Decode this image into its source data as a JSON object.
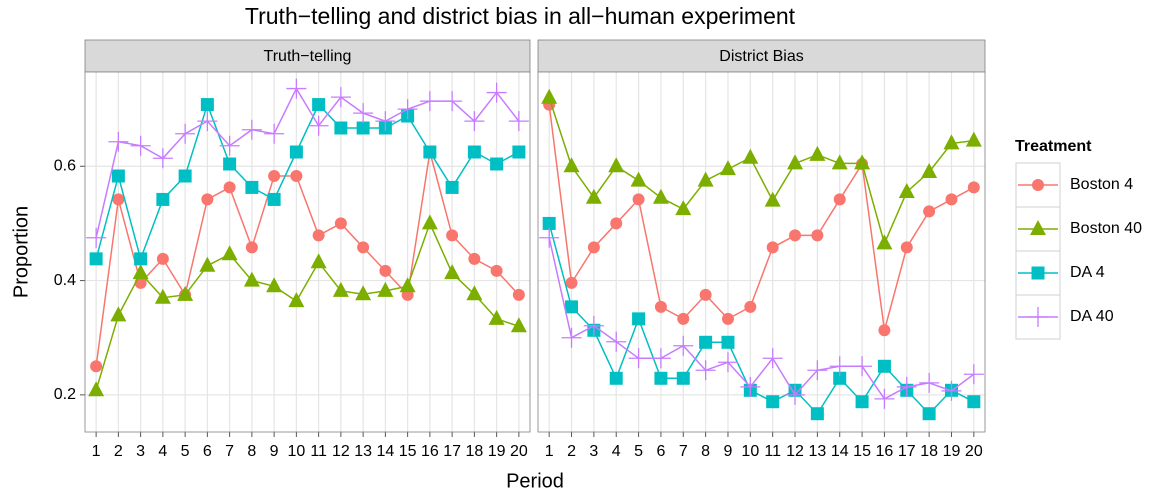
{
  "chart_data": {
    "type": "line",
    "title": "Truth−telling and district bias in all−human experiment",
    "xlabel": "Period",
    "ylabel": "Proportion",
    "legend_title": "Treatment",
    "legend": "right",
    "grid": true,
    "x": [
      1,
      2,
      3,
      4,
      5,
      6,
      7,
      8,
      9,
      10,
      11,
      12,
      13,
      14,
      15,
      16,
      17,
      18,
      19,
      20
    ],
    "xlim": [
      0.5,
      20.5
    ],
    "xticks": [
      1,
      2,
      3,
      4,
      5,
      6,
      7,
      8,
      9,
      10,
      11,
      12,
      13,
      14,
      15,
      16,
      17,
      18,
      19,
      20
    ],
    "ylim": [
      0.135,
      0.765
    ],
    "yticks": [
      0.2,
      0.4,
      0.6
    ],
    "series": [
      {
        "name": "Boston 4",
        "color": "#F8766D",
        "marker": "circle"
      },
      {
        "name": "Boston 40",
        "color": "#7CAE00",
        "marker": "triangle"
      },
      {
        "name": "DA 4",
        "color": "#00BFC4",
        "marker": "square"
      },
      {
        "name": "DA 40",
        "color": "#C77CFF",
        "marker": "plus"
      }
    ],
    "facets": [
      {
        "title": "Truth−telling",
        "values": [
          [
            0.25,
            0.542,
            0.396,
            0.438,
            0.375,
            0.542,
            0.563,
            0.458,
            0.583,
            0.583,
            0.479,
            0.5,
            0.458,
            0.417,
            0.375,
            0.625,
            0.479,
            0.438,
            0.417,
            0.375
          ],
          [
            0.208,
            0.339,
            0.413,
            0.37,
            0.375,
            0.426,
            0.446,
            0.4,
            0.39,
            0.364,
            0.432,
            0.382,
            0.376,
            0.382,
            0.39,
            0.5,
            0.413,
            0.376,
            0.333,
            0.32
          ],
          [
            0.438,
            0.583,
            0.438,
            0.542,
            0.583,
            0.708,
            0.604,
            0.563,
            0.542,
            0.625,
            0.708,
            0.667,
            0.667,
            0.667,
            0.688,
            0.625,
            0.563,
            0.625,
            0.604,
            0.625
          ],
          [
            0.475,
            0.643,
            0.636,
            0.614,
            0.657,
            0.679,
            0.636,
            0.664,
            0.657,
            0.736,
            0.671,
            0.721,
            0.693,
            0.679,
            0.7,
            0.714,
            0.714,
            0.679,
            0.729,
            0.679
          ]
        ]
      },
      {
        "title": "District Bias",
        "values": [
          [
            0.708,
            0.396,
            0.458,
            0.5,
            0.542,
            0.354,
            0.333,
            0.375,
            0.333,
            0.354,
            0.458,
            0.479,
            0.479,
            0.542,
            0.604,
            0.313,
            0.458,
            0.521,
            0.542,
            0.563
          ],
          [
            0.72,
            0.6,
            0.545,
            0.6,
            0.575,
            0.545,
            0.525,
            0.575,
            0.595,
            0.615,
            0.54,
            0.605,
            0.62,
            0.605,
            0.605,
            0.465,
            0.555,
            0.59,
            0.64,
            0.645
          ],
          [
            0.5,
            0.354,
            0.313,
            0.229,
            0.333,
            0.229,
            0.229,
            0.292,
            0.292,
            0.208,
            0.188,
            0.208,
            0.167,
            0.229,
            0.188,
            0.25,
            0.208,
            0.167,
            0.208,
            0.188
          ],
          [
            0.475,
            0.3,
            0.321,
            0.293,
            0.264,
            0.264,
            0.286,
            0.243,
            0.257,
            0.214,
            0.264,
            0.2,
            0.243,
            0.25,
            0.25,
            0.193,
            0.214,
            0.221,
            0.207,
            0.236
          ]
        ]
      }
    ]
  }
}
